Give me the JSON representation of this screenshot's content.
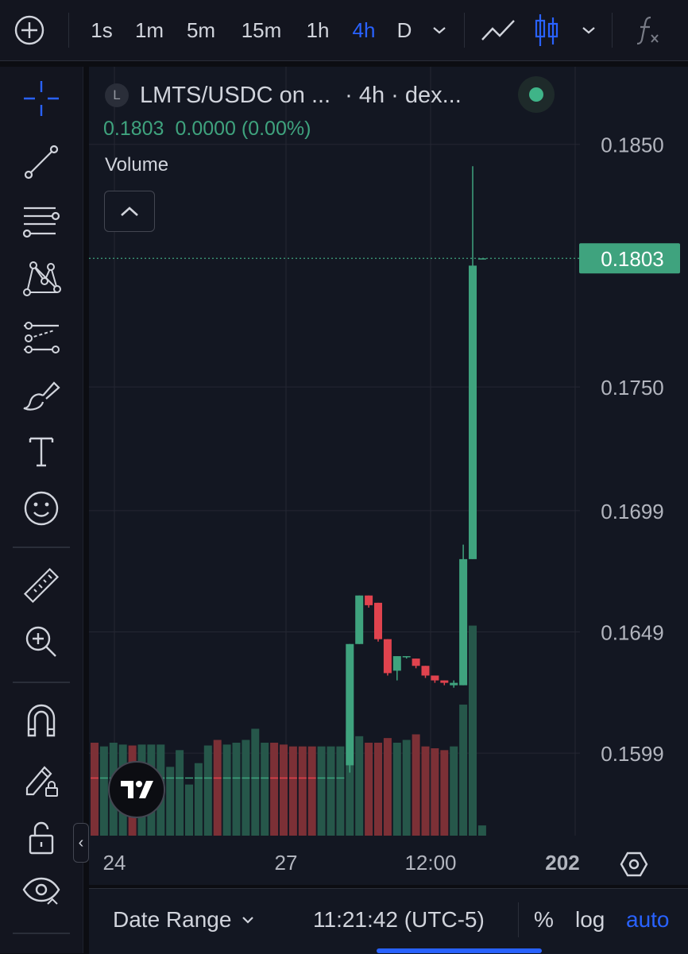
{
  "toolbar": {
    "intervals": [
      "1s",
      "1m",
      "5m",
      "15m",
      "1h",
      "4h",
      "D"
    ],
    "active_interval": "4h",
    "colors": {
      "active": "#2962ff",
      "text": "#d1d4dc"
    }
  },
  "sidebar": {
    "tools": [
      "crosshair-icon",
      "trend-line-icon",
      "fib-retracement-icon",
      "pattern-icon",
      "forecast-icon",
      "brush-icon",
      "text-icon",
      "emoji-icon",
      "ruler-icon",
      "zoom-in-icon",
      "magnet-icon",
      "lock-drawing-icon",
      "lock-icon",
      "eye-icon"
    ],
    "collapse_glyph": "‹"
  },
  "legend": {
    "logo_letter": "L",
    "symbol": "LMTS/USDC on ...",
    "meta": "· 4h · dex...",
    "price": "0.1803",
    "change": "0.0000 (0.00%)",
    "volume_label": "Volume"
  },
  "chart_data": {
    "type": "candlestick",
    "price_axis_labels": [
      "0.1850",
      "0.1750",
      "0.1699",
      "0.1649",
      "0.1599"
    ],
    "time_axis_labels": [
      "24",
      "27",
      "12:00",
      "202"
    ],
    "last_price_label": "0.1803",
    "ylim": [
      0.1565,
      0.1882
    ],
    "grid": true,
    "candles": [
      {
        "o": 0.1589,
        "h": 0.1589,
        "l": 0.1589,
        "c": 0.1589,
        "v": 1.0,
        "up": false
      },
      {
        "o": 0.1589,
        "h": 0.1589,
        "l": 0.1589,
        "c": 0.1589,
        "v": 0.96,
        "up": true
      },
      {
        "o": 0.1589,
        "h": 0.1589,
        "l": 0.1589,
        "c": 0.1589,
        "v": 1.0,
        "up": true
      },
      {
        "o": 0.1589,
        "h": 0.1589,
        "l": 0.1589,
        "c": 0.1589,
        "v": 0.98,
        "up": true
      },
      {
        "o": 0.1589,
        "h": 0.1589,
        "l": 0.1589,
        "c": 0.1589,
        "v": 0.97,
        "up": false
      },
      {
        "o": 0.1589,
        "h": 0.1589,
        "l": 0.1589,
        "c": 0.1589,
        "v": 0.98,
        "up": true
      },
      {
        "o": 0.1589,
        "h": 0.1589,
        "l": 0.1589,
        "c": 0.1589,
        "v": 0.98,
        "up": true
      },
      {
        "o": 0.1589,
        "h": 0.1589,
        "l": 0.1589,
        "c": 0.1589,
        "v": 0.98,
        "up": true
      },
      {
        "o": 0.1589,
        "h": 0.1589,
        "l": 0.1589,
        "c": 0.1589,
        "v": 0.74,
        "up": true
      },
      {
        "o": 0.1589,
        "h": 0.1589,
        "l": 0.1589,
        "c": 0.1589,
        "v": 0.92,
        "up": true
      },
      {
        "o": 0.1589,
        "h": 0.1589,
        "l": 0.1589,
        "c": 0.1589,
        "v": 0.55,
        "up": true
      },
      {
        "o": 0.1589,
        "h": 0.1589,
        "l": 0.1589,
        "c": 0.1589,
        "v": 0.78,
        "up": true
      },
      {
        "o": 0.1589,
        "h": 0.1589,
        "l": 0.1589,
        "c": 0.1589,
        "v": 0.97,
        "up": true
      },
      {
        "o": 0.1589,
        "h": 0.1589,
        "l": 0.1589,
        "c": 0.1589,
        "v": 1.03,
        "up": false
      },
      {
        "o": 0.1589,
        "h": 0.1589,
        "l": 0.1589,
        "c": 0.1589,
        "v": 0.98,
        "up": true
      },
      {
        "o": 0.1589,
        "h": 0.1589,
        "l": 0.1589,
        "c": 0.1589,
        "v": 1.0,
        "up": true
      },
      {
        "o": 0.1589,
        "h": 0.1589,
        "l": 0.1589,
        "c": 0.1589,
        "v": 1.03,
        "up": true
      },
      {
        "o": 0.1589,
        "h": 0.1589,
        "l": 0.1589,
        "c": 0.1589,
        "v": 1.15,
        "up": true
      },
      {
        "o": 0.1589,
        "h": 0.1589,
        "l": 0.1589,
        "c": 0.1589,
        "v": 1.0,
        "up": true
      },
      {
        "o": 0.1589,
        "h": 0.1589,
        "l": 0.1589,
        "c": 0.1589,
        "v": 1.0,
        "up": false
      },
      {
        "o": 0.1589,
        "h": 0.1589,
        "l": 0.1589,
        "c": 0.1589,
        "v": 0.98,
        "up": false
      },
      {
        "o": 0.1589,
        "h": 0.1589,
        "l": 0.1589,
        "c": 0.1589,
        "v": 0.96,
        "up": false
      },
      {
        "o": 0.1589,
        "h": 0.1589,
        "l": 0.1589,
        "c": 0.1589,
        "v": 0.96,
        "up": false
      },
      {
        "o": 0.1589,
        "h": 0.1589,
        "l": 0.1589,
        "c": 0.1589,
        "v": 0.96,
        "up": false
      },
      {
        "o": 0.1589,
        "h": 0.1589,
        "l": 0.1589,
        "c": 0.1589,
        "v": 0.96,
        "up": true
      },
      {
        "o": 0.1589,
        "h": 0.1589,
        "l": 0.1589,
        "c": 0.1589,
        "v": 0.96,
        "up": true
      },
      {
        "o": 0.1589,
        "h": 0.1589,
        "l": 0.1589,
        "c": 0.1589,
        "v": 0.96,
        "up": true
      },
      {
        "o": 0.1594,
        "h": 0.1644,
        "l": 0.1591,
        "c": 0.1644,
        "v": 1.13,
        "up": true
      },
      {
        "o": 0.1644,
        "h": 0.1664,
        "l": 0.1644,
        "c": 0.1664,
        "v": 1.07,
        "up": true
      },
      {
        "o": 0.1664,
        "h": 0.1664,
        "l": 0.1659,
        "c": 0.166,
        "v": 1.0,
        "up": false
      },
      {
        "o": 0.1661,
        "h": 0.1661,
        "l": 0.1645,
        "c": 0.1646,
        "v": 1.0,
        "up": false
      },
      {
        "o": 0.1646,
        "h": 0.1646,
        "l": 0.1631,
        "c": 0.1632,
        "v": 1.05,
        "up": false
      },
      {
        "o": 0.1633,
        "h": 0.1639,
        "l": 0.1629,
        "c": 0.1639,
        "v": 1.0,
        "up": true
      },
      {
        "o": 0.1639,
        "h": 0.1639,
        "l": 0.1638,
        "c": 0.1639,
        "v": 1.03,
        "up": true
      },
      {
        "o": 0.1638,
        "h": 0.1638,
        "l": 0.1634,
        "c": 0.1635,
        "v": 1.09,
        "up": false
      },
      {
        "o": 0.1635,
        "h": 0.1635,
        "l": 0.163,
        "c": 0.1631,
        "v": 0.96,
        "up": false
      },
      {
        "o": 0.1631,
        "h": 0.1631,
        "l": 0.1628,
        "c": 0.1629,
        "v": 0.94,
        "up": false
      },
      {
        "o": 0.1629,
        "h": 0.1629,
        "l": 0.1627,
        "c": 0.1628,
        "v": 0.92,
        "up": false
      },
      {
        "o": 0.1628,
        "h": 0.1629,
        "l": 0.1626,
        "c": 0.1627,
        "v": 0.96,
        "up": true
      },
      {
        "o": 0.1627,
        "h": 0.1685,
        "l": 0.1627,
        "c": 0.1679,
        "v": 1.41,
        "up": true
      },
      {
        "o": 0.1679,
        "h": 0.1841,
        "l": 0.1679,
        "c": 0.18,
        "v": 2.26,
        "up": true
      },
      {
        "o": 0.1803,
        "h": 0.1803,
        "l": 0.1803,
        "c": 0.1803,
        "v": 0.11,
        "up": true
      }
    ],
    "colors": {
      "up": "#3fa37e",
      "down": "#e0434e",
      "vol_up": "#26574a",
      "vol_down": "#7c3036",
      "grid": "#242733",
      "axis_text": "#b2b5be",
      "last_price": "#3fa37e"
    }
  },
  "bottom": {
    "date_range": "Date Range",
    "time": "11:21:42 (UTC-5)",
    "percent": "%",
    "log": "log",
    "auto": "auto"
  }
}
